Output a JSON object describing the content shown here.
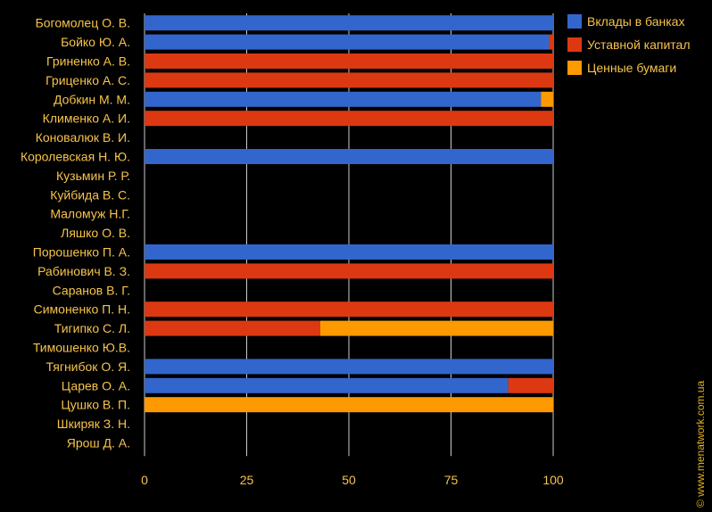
{
  "chart_data": {
    "type": "bar",
    "orientation": "horizontal",
    "stacked": true,
    "categories": [
      "Богомолец О. В.",
      "Бойко Ю. А.",
      "Гриненко А. В.",
      "Гриценко А. С.",
      "Добкин М. М.",
      "Клименко А. И.",
      "Коновалюк В. И.",
      "Королевская Н. Ю.",
      "Кузьмин Р. Р.",
      "Куйбида В. С.",
      "Маломуж Н.Г.",
      "Ляшко О. В.",
      "Порошенко П. А.",
      "Рабинович В. З.",
      "Саранов В. Г.",
      "Симоненко П. Н.",
      "Тигипко С. Л.",
      "Тимошенко Ю.В.",
      "Тягнибок О. Я.",
      "Царев О. А.",
      "Цушко В. П.",
      "Шкиряк З. Н.",
      "Ярош Д. А."
    ],
    "series": [
      {
        "name": "Вклады в банках",
        "color": "#3366cc",
        "values": [
          100,
          99,
          0,
          0,
          97,
          0,
          0,
          100,
          0,
          0,
          0,
          0,
          100,
          0,
          0,
          0,
          0,
          0,
          100,
          89,
          0,
          0,
          0
        ]
      },
      {
        "name": "Уставной капитал",
        "color": "#dc3912",
        "values": [
          0,
          1,
          100,
          100,
          0,
          100,
          0,
          0,
          0,
          0,
          0,
          0,
          0,
          100,
          0,
          100,
          43,
          0,
          0,
          11,
          0,
          0,
          0
        ]
      },
      {
        "name": "Ценные бумаги",
        "color": "#ff9900",
        "values": [
          0,
          0,
          0,
          0,
          3,
          0,
          0,
          0,
          0,
          0,
          0,
          0,
          0,
          0,
          0,
          0,
          57,
          0,
          0,
          0,
          100,
          0,
          0
        ]
      }
    ],
    "x_ticks": [
      "0",
      "25",
      "50",
      "75",
      "100"
    ],
    "xlim": [
      0,
      100
    ],
    "grid": true,
    "legend_position": "top-right",
    "label_color": "#f7c34c"
  },
  "copyright": "© www.menatwork.com.ua"
}
